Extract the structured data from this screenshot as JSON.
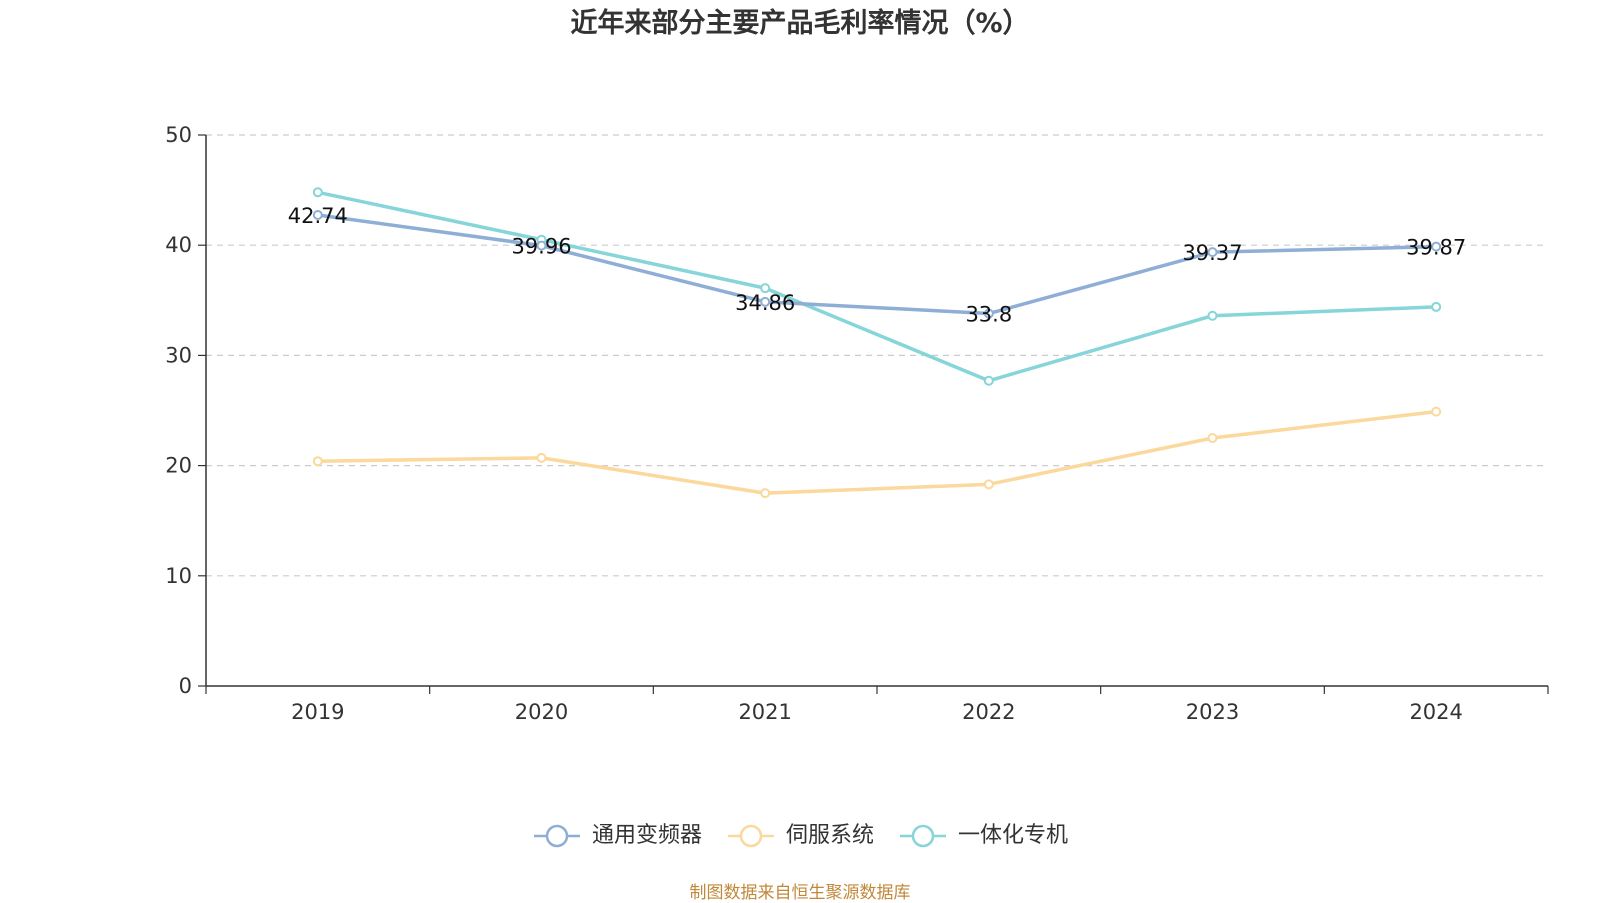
{
  "chart_data": {
    "type": "line",
    "title": "近年来部分主要产品毛利率情况（%）",
    "categories": [
      "2019",
      "2020",
      "2021",
      "2022",
      "2023",
      "2024"
    ],
    "ylim": [
      0,
      50
    ],
    "yticks": [
      "0",
      "10",
      "20",
      "30",
      "40",
      "50"
    ],
    "grid": true,
    "legend_position": "bottom",
    "series": [
      {
        "name": "通用变频器",
        "color": "#8eaed6",
        "values": [
          42.74,
          39.96,
          34.86,
          33.8,
          39.37,
          39.87
        ],
        "labels": [
          "42.74",
          "39.96",
          "34.86",
          "33.8",
          "39.37",
          "39.87"
        ]
      },
      {
        "name": "伺服系统",
        "color": "#fbd89b",
        "values": [
          20.4,
          20.7,
          17.5,
          18.3,
          22.5,
          24.9
        ],
        "labels": []
      },
      {
        "name": "一体化专机",
        "color": "#85d5d9",
        "values": [
          44.8,
          40.5,
          36.1,
          27.7,
          33.6,
          34.4
        ],
        "labels": []
      }
    ]
  },
  "source": "制图数据来自恒生聚源数据库"
}
